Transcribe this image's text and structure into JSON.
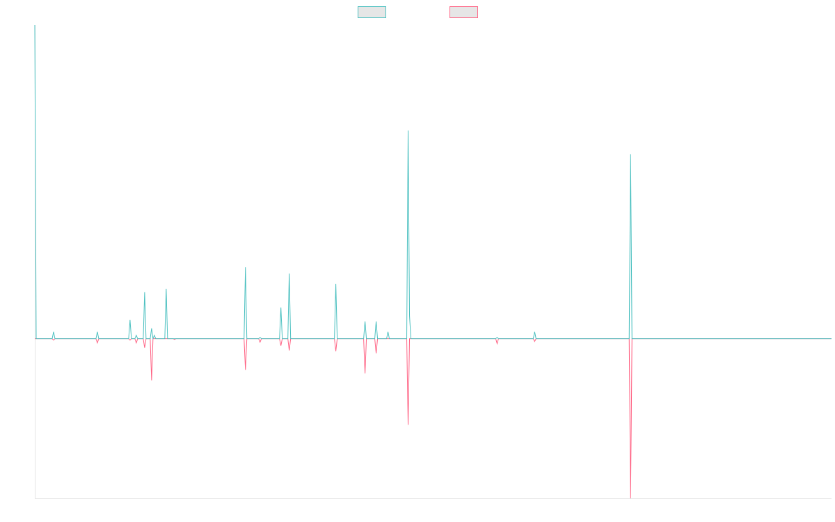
{
  "chart_data": {
    "type": "line",
    "title": "",
    "xlabel": "",
    "ylabel": "",
    "xlim": [
      0,
      1146
    ],
    "ylim": [
      -230,
      452
    ],
    "grid": false,
    "legend": {
      "position": "top-center",
      "show_labels": false
    },
    "series": [
      {
        "name": "",
        "color": "#4bc0c0",
        "points": [
          [
            0,
            452
          ],
          [
            2,
            0
          ],
          [
            25,
            0
          ],
          [
            27,
            10
          ],
          [
            29,
            0
          ],
          [
            88,
            0
          ],
          [
            90,
            10
          ],
          [
            92,
            0
          ],
          [
            135,
            0
          ],
          [
            137,
            27
          ],
          [
            139,
            0
          ],
          [
            144,
            0
          ],
          [
            146,
            5
          ],
          [
            148,
            0
          ],
          [
            156,
            0
          ],
          [
            158,
            67
          ],
          [
            160,
            0
          ],
          [
            166,
            0
          ],
          [
            168,
            15
          ],
          [
            170,
            0
          ],
          [
            172,
            5
          ],
          [
            174,
            0
          ],
          [
            187,
            0
          ],
          [
            189,
            72
          ],
          [
            191,
            0
          ],
          [
            199,
            0
          ],
          [
            201,
            0
          ],
          [
            301,
            0
          ],
          [
            303,
            103
          ],
          [
            305,
            0
          ],
          [
            322,
            0
          ],
          [
            324,
            2
          ],
          [
            326,
            0
          ],
          [
            352,
            0
          ],
          [
            354,
            45
          ],
          [
            356,
            0
          ],
          [
            364,
            0
          ],
          [
            366,
            94
          ],
          [
            368,
            0
          ],
          [
            431,
            0
          ],
          [
            433,
            79
          ],
          [
            435,
            0
          ],
          [
            473,
            0
          ],
          [
            475,
            25
          ],
          [
            477,
            0
          ],
          [
            489,
            0
          ],
          [
            491,
            25
          ],
          [
            493,
            0
          ],
          [
            506,
            0
          ],
          [
            508,
            10
          ],
          [
            510,
            0
          ],
          [
            535,
            0
          ],
          [
            537,
            300
          ],
          [
            539,
            33
          ],
          [
            541,
            0
          ],
          [
            663,
            0
          ],
          [
            665,
            2
          ],
          [
            667,
            0
          ],
          [
            717,
            0
          ],
          [
            719,
            10
          ],
          [
            721,
            0
          ],
          [
            855,
            0
          ],
          [
            857,
            266
          ],
          [
            859,
            0
          ],
          [
            1146,
            0
          ]
        ]
      },
      {
        "name": "",
        "color": "#ff6384",
        "points": [
          [
            0,
            0
          ],
          [
            25,
            0
          ],
          [
            27,
            -2
          ],
          [
            29,
            0
          ],
          [
            88,
            0
          ],
          [
            90,
            -6
          ],
          [
            92,
            0
          ],
          [
            135,
            0
          ],
          [
            137,
            -2
          ],
          [
            139,
            0
          ],
          [
            144,
            0
          ],
          [
            146,
            -6
          ],
          [
            148,
            0
          ],
          [
            156,
            0
          ],
          [
            158,
            -13
          ],
          [
            160,
            0
          ],
          [
            166,
            0
          ],
          [
            168,
            -60
          ],
          [
            170,
            0
          ],
          [
            199,
            0
          ],
          [
            201,
            -1
          ],
          [
            203,
            0
          ],
          [
            301,
            0
          ],
          [
            303,
            -45
          ],
          [
            305,
            0
          ],
          [
            322,
            0
          ],
          [
            324,
            -5
          ],
          [
            326,
            0
          ],
          [
            352,
            0
          ],
          [
            354,
            -10
          ],
          [
            356,
            0
          ],
          [
            364,
            0
          ],
          [
            366,
            -17
          ],
          [
            368,
            0
          ],
          [
            431,
            0
          ],
          [
            433,
            -18
          ],
          [
            435,
            0
          ],
          [
            473,
            0
          ],
          [
            475,
            -50
          ],
          [
            477,
            0
          ],
          [
            489,
            0
          ],
          [
            491,
            -21
          ],
          [
            493,
            0
          ],
          [
            535,
            0
          ],
          [
            537,
            -124
          ],
          [
            539,
            0
          ],
          [
            663,
            0
          ],
          [
            665,
            -7
          ],
          [
            667,
            0
          ],
          [
            717,
            0
          ],
          [
            719,
            -4
          ],
          [
            721,
            0
          ],
          [
            855,
            0
          ],
          [
            857,
            -230
          ],
          [
            859,
            0
          ],
          [
            1146,
            0
          ]
        ]
      }
    ]
  }
}
